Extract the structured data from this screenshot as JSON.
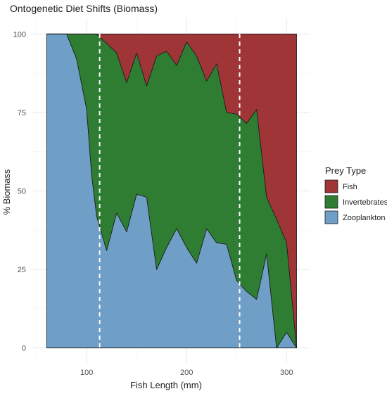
{
  "chart_data": {
    "type": "area",
    "stacked": true,
    "title": "Ontogenetic Diet Shifts (Biomass)",
    "xlabel": "Fish Length (mm)",
    "ylabel": "% Biomass",
    "xlim": [
      45,
      323
    ],
    "ylim": [
      -5,
      105
    ],
    "x_ticks": [
      100,
      200,
      300
    ],
    "y_ticks": [
      0,
      25,
      50,
      75,
      100
    ],
    "grid": true,
    "legend": {
      "title": "Prey Type",
      "placement": "right",
      "entries": [
        "Fish",
        "Invertebrates",
        "Zooplankton"
      ]
    },
    "colors": {
      "Fish": "#a03538",
      "Invertebrates": "#2f7d32",
      "Zooplankton": "#6f9ec6"
    },
    "x": [
      60,
      70,
      80,
      90,
      100,
      105,
      110,
      120,
      130,
      140,
      150,
      160,
      170,
      180,
      190,
      200,
      210,
      220,
      230,
      240,
      250,
      260,
      270,
      280,
      290,
      300,
      310
    ],
    "series": [
      {
        "name": "Zooplankton",
        "values": [
          100,
          100,
          100,
          92,
          76,
          55,
          42,
          31,
          43,
          37,
          49,
          48,
          25,
          32,
          38,
          32,
          27,
          38,
          33.5,
          33,
          21.5,
          18,
          15.5,
          30,
          0,
          5,
          0
        ]
      },
      {
        "name": "Invertebrates",
        "values": [
          0,
          0,
          0,
          8,
          24,
          45,
          58,
          66,
          51,
          47.5,
          45,
          35.5,
          68,
          62.5,
          52,
          65.5,
          66,
          47,
          57,
          42,
          53,
          53.5,
          60.5,
          18,
          41,
          28.5,
          0
        ]
      },
      {
        "name": "Fish",
        "values": [
          0,
          0,
          0,
          0,
          0,
          0,
          0,
          3,
          6,
          15.5,
          6,
          16.5,
          7,
          5.5,
          10,
          2.5,
          7,
          15,
          9.5,
          25,
          25.5,
          28.5,
          24,
          52,
          59,
          66.5,
          100
        ]
      }
    ],
    "reference_lines": [
      113,
      253
    ]
  }
}
